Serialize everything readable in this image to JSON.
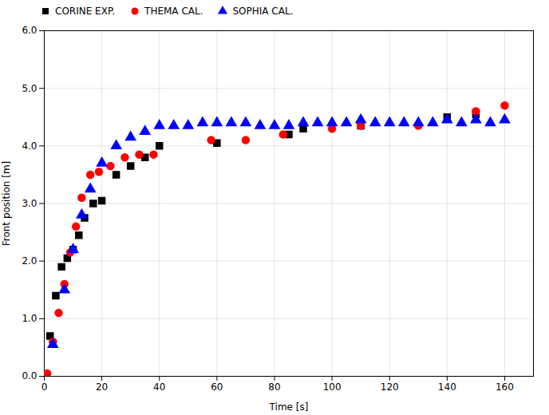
{
  "chart_data": {
    "type": "scatter",
    "x_label": "Time [s]",
    "y_label": "Front position [m]",
    "xlim": [
      0,
      170
    ],
    "ylim": [
      0,
      6
    ],
    "xticks": [
      0,
      20,
      40,
      60,
      80,
      100,
      120,
      140,
      160
    ],
    "yticks": [
      0,
      1,
      2,
      3,
      4,
      5,
      6
    ],
    "grid": true,
    "legend": "upper left",
    "series": [
      {
        "name": "CORINE EXP.",
        "color": "#000000",
        "marker": "square",
        "x": [
          2,
          4,
          6,
          8,
          10,
          12,
          14,
          17,
          20,
          25,
          30,
          35,
          40,
          60,
          85,
          90,
          110,
          140,
          150
        ],
        "values": [
          0.7,
          1.4,
          1.9,
          2.05,
          2.2,
          2.45,
          2.75,
          3.0,
          3.05,
          3.5,
          3.65,
          3.8,
          4.0,
          4.05,
          4.2,
          4.3,
          4.35,
          4.5,
          4.55
        ]
      },
      {
        "name": "THEMA CAL.",
        "color": "#ff0000",
        "marker": "circle",
        "x": [
          1,
          3,
          5,
          7,
          9,
          11,
          13,
          16,
          19,
          23,
          28,
          33,
          38,
          58,
          70,
          83,
          100,
          110,
          130,
          150,
          160
        ],
        "values": [
          0.05,
          0.6,
          1.1,
          1.6,
          2.15,
          2.6,
          3.1,
          3.5,
          3.55,
          3.65,
          3.8,
          3.85,
          3.85,
          4.1,
          4.1,
          4.2,
          4.3,
          4.35,
          4.35,
          4.6,
          4.7
        ]
      },
      {
        "name": "SOPHIA CAL.",
        "color": "#0000ff",
        "marker": "triangle",
        "x": [
          3,
          7,
          10,
          13,
          16,
          20,
          25,
          30,
          35,
          40,
          45,
          50,
          55,
          60,
          65,
          70,
          75,
          80,
          85,
          90,
          95,
          100,
          105,
          110,
          115,
          120,
          125,
          130,
          135,
          140,
          145,
          150,
          155,
          160
        ],
        "values": [
          0.55,
          1.5,
          2.2,
          2.8,
          3.25,
          3.7,
          4.0,
          4.15,
          4.25,
          4.35,
          4.35,
          4.35,
          4.4,
          4.4,
          4.4,
          4.4,
          4.35,
          4.35,
          4.35,
          4.4,
          4.4,
          4.4,
          4.4,
          4.45,
          4.4,
          4.4,
          4.4,
          4.4,
          4.4,
          4.45,
          4.4,
          4.45,
          4.4,
          4.45
        ]
      }
    ]
  }
}
